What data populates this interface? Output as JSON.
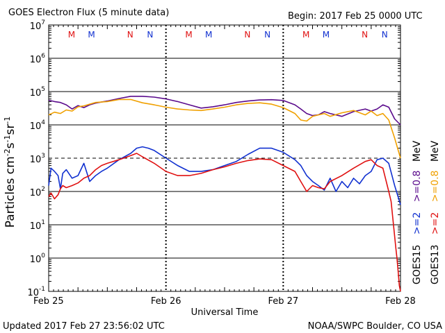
{
  "header": {
    "title": "GOES Electron Flux (5 minute data)",
    "begin": "Begin: 2017 Feb 25 0000 UTC"
  },
  "footer": {
    "updated": "Updated 2017 Feb 27 23:56:02 UTC",
    "credit": "NOAA/SWPC Boulder, CO USA"
  },
  "colors": {
    "goes15_08": "#5a0a8c",
    "goes13_08": "#f0a000",
    "goes15_2": "#1030d0",
    "goes13_2": "#e01010"
  },
  "chart_data": {
    "type": "line",
    "yscale": "log",
    "ylim": [
      0.1,
      10000000
    ],
    "xlim_days": [
      0,
      3
    ],
    "ylabel_parts": [
      "Particles cm",
      "-2",
      "s",
      "-1",
      "sr",
      "-1"
    ],
    "xlabel": "Universal Time",
    "x_tick_labels": [
      "Feb 25",
      "Feb 26",
      "Feb 27",
      "Feb 28"
    ],
    "y_tick_labels": [
      {
        "base": "10",
        "exp": "-1"
      },
      {
        "base": "10",
        "exp": "0"
      },
      {
        "base": "10",
        "exp": "1"
      },
      {
        "base": "10",
        "exp": "2"
      },
      {
        "base": "10",
        "exp": "3"
      },
      {
        "base": "10",
        "exp": "4"
      },
      {
        "base": "10",
        "exp": "5"
      },
      {
        "base": "10",
        "exp": "6"
      },
      {
        "base": "10",
        "exp": "7"
      }
    ],
    "threshold": 1000,
    "markers": [
      {
        "label": "M",
        "day": 0.195,
        "sat": "goes13"
      },
      {
        "label": "M",
        "day": 0.365,
        "sat": "goes15"
      },
      {
        "label": "N",
        "day": 0.695,
        "sat": "goes13"
      },
      {
        "label": "N",
        "day": 0.865,
        "sat": "goes15"
      },
      {
        "label": "M",
        "day": 1.195,
        "sat": "goes13"
      },
      {
        "label": "M",
        "day": 1.365,
        "sat": "goes15"
      },
      {
        "label": "N",
        "day": 1.695,
        "sat": "goes13"
      },
      {
        "label": "N",
        "day": 1.865,
        "sat": "goes15"
      },
      {
        "label": "M",
        "day": 2.195,
        "sat": "goes13"
      },
      {
        "label": "M",
        "day": 2.365,
        "sat": "goes15"
      },
      {
        "label": "N",
        "day": 2.695,
        "sat": "goes13"
      },
      {
        "label": "N",
        "day": 2.865,
        "sat": "goes15"
      }
    ],
    "legend": {
      "goes15": {
        "sat": "GOES15",
        "e2": ">=2",
        "e08": ">=0.8",
        "unit": "MeV"
      },
      "goes13": {
        "sat": "GOES13",
        "e2": ">=2",
        "e08": ">=0.8",
        "unit": "MeV"
      }
    },
    "series": [
      {
        "name": "GOES15 >=0.8 MeV",
        "sat": "goes15",
        "energy": "0.8",
        "color": "#5a0a8c",
        "x": [
          0,
          0.05,
          0.1,
          0.15,
          0.2,
          0.25,
          0.3,
          0.35,
          0.4,
          0.5,
          0.6,
          0.7,
          0.8,
          0.9,
          1.0,
          1.1,
          1.2,
          1.3,
          1.4,
          1.5,
          1.6,
          1.7,
          1.8,
          1.9,
          2.0,
          2.1,
          2.15,
          2.2,
          2.25,
          2.3,
          2.35,
          2.4,
          2.5,
          2.6,
          2.7,
          2.75,
          2.8,
          2.85,
          2.9,
          2.95,
          3.0
        ],
        "y": [
          55000,
          50000,
          47000,
          40000,
          30000,
          38000,
          33000,
          40000,
          45000,
          52000,
          62000,
          72000,
          72000,
          68000,
          60000,
          50000,
          40000,
          32000,
          35000,
          40000,
          47000,
          52000,
          56000,
          57000,
          54000,
          40000,
          30000,
          22000,
          19000,
          20000,
          25000,
          22000,
          18000,
          25000,
          30000,
          26000,
          30000,
          40000,
          34000,
          15000,
          10000
        ]
      },
      {
        "name": "GOES13 >=0.8 MeV",
        "sat": "goes13",
        "energy": "0.8",
        "color": "#f0a000",
        "x": [
          0,
          0.05,
          0.1,
          0.15,
          0.2,
          0.25,
          0.3,
          0.35,
          0.4,
          0.5,
          0.6,
          0.7,
          0.8,
          0.9,
          1.0,
          1.1,
          1.2,
          1.3,
          1.4,
          1.5,
          1.6,
          1.7,
          1.8,
          1.9,
          2.0,
          2.1,
          2.15,
          2.2,
          2.25,
          2.3,
          2.35,
          2.4,
          2.5,
          2.6,
          2.7,
          2.75,
          2.8,
          2.85,
          2.9,
          2.95,
          3.0
        ],
        "y": [
          20000,
          24000,
          22000,
          28000,
          26000,
          35000,
          37000,
          42000,
          47000,
          50000,
          58000,
          58000,
          46000,
          40000,
          34000,
          30000,
          28000,
          27000,
          30000,
          34000,
          40000,
          44000,
          46000,
          42000,
          33000,
          22000,
          14000,
          13000,
          18000,
          20000,
          22000,
          18000,
          23000,
          27000,
          20000,
          26000,
          19000,
          22000,
          14000,
          4000,
          1000
        ]
      },
      {
        "name": "GOES15 >=2 MeV",
        "sat": "goes15",
        "energy": "2",
        "color": "#1030d0",
        "x": [
          0,
          0.02,
          0.05,
          0.08,
          0.1,
          0.12,
          0.15,
          0.2,
          0.25,
          0.3,
          0.35,
          0.4,
          0.45,
          0.5,
          0.6,
          0.7,
          0.75,
          0.8,
          0.85,
          0.9,
          1.0,
          1.1,
          1.2,
          1.3,
          1.4,
          1.5,
          1.6,
          1.7,
          1.8,
          1.9,
          2.0,
          2.1,
          2.15,
          2.2,
          2.25,
          2.3,
          2.35,
          2.4,
          2.45,
          2.5,
          2.55,
          2.6,
          2.65,
          2.7,
          2.75,
          2.8,
          2.85,
          2.9,
          2.95,
          3.0
        ],
        "y": [
          150,
          500,
          400,
          300,
          120,
          350,
          450,
          250,
          300,
          700,
          200,
          300,
          400,
          500,
          900,
          1400,
          2000,
          2200,
          2000,
          1700,
          1000,
          600,
          400,
          400,
          450,
          600,
          800,
          1300,
          2000,
          2000,
          1500,
          900,
          600,
          300,
          200,
          150,
          110,
          250,
          100,
          200,
          130,
          250,
          170,
          300,
          400,
          900,
          1000,
          700,
          150,
          40
        ]
      },
      {
        "name": "GOES13 >=2 MeV",
        "sat": "goes13",
        "energy": "2",
        "color": "#e01010",
        "x": [
          0,
          0.02,
          0.05,
          0.08,
          0.1,
          0.12,
          0.15,
          0.2,
          0.25,
          0.3,
          0.35,
          0.4,
          0.45,
          0.5,
          0.6,
          0.7,
          0.75,
          0.8,
          0.9,
          1.0,
          1.1,
          1.2,
          1.3,
          1.4,
          1.5,
          1.6,
          1.7,
          1.8,
          1.9,
          2.0,
          2.1,
          2.15,
          2.2,
          2.25,
          2.3,
          2.35,
          2.4,
          2.5,
          2.6,
          2.7,
          2.75,
          2.8,
          2.85,
          2.9,
          2.92,
          2.94,
          2.96,
          2.97,
          2.98,
          2.99,
          3.0
        ],
        "y": [
          70,
          90,
          60,
          80,
          120,
          150,
          130,
          150,
          180,
          250,
          300,
          450,
          600,
          700,
          900,
          1200,
          1400,
          1100,
          700,
          400,
          300,
          300,
          350,
          450,
          550,
          700,
          850,
          950,
          900,
          600,
          400,
          200,
          100,
          150,
          130,
          120,
          200,
          300,
          500,
          800,
          900,
          600,
          500,
          100,
          50,
          10,
          2,
          1,
          0.4,
          0.15,
          0.1
        ]
      }
    ]
  }
}
